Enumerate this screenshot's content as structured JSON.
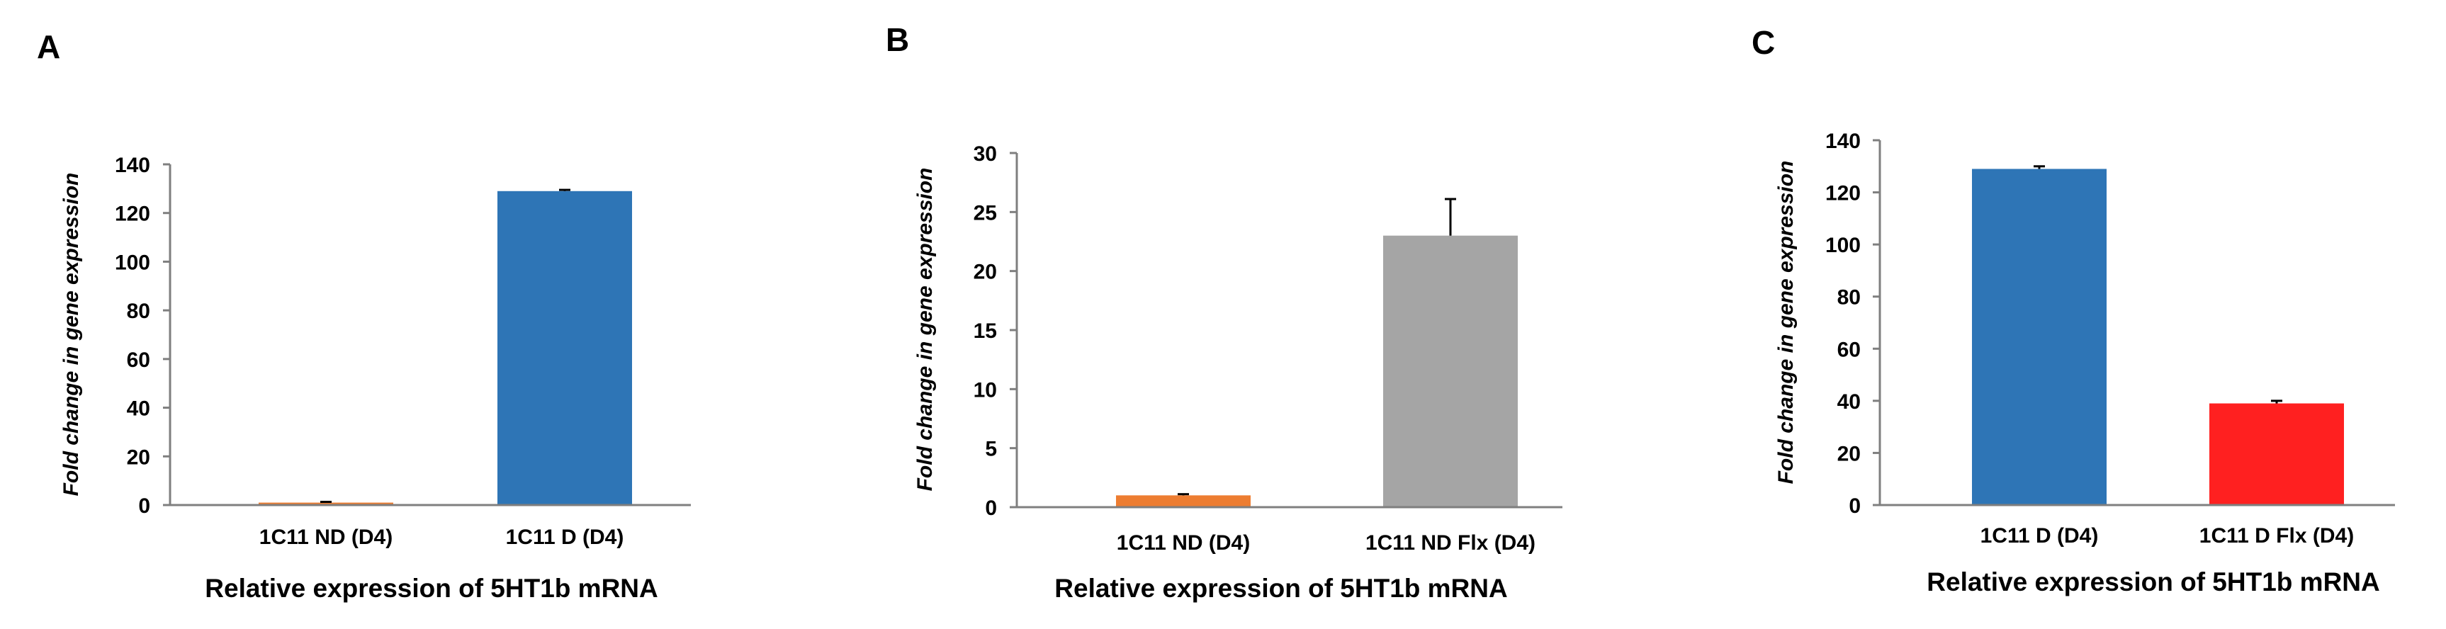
{
  "chart_data": [
    {
      "panel": "A",
      "type": "bar",
      "categories": [
        "1C11 ND (D4)",
        "1C11 D (D4)"
      ],
      "values": [
        1,
        129
      ],
      "errors": [
        0.3,
        0.5
      ],
      "colors": [
        "#ed7d31",
        "#2e75b6"
      ],
      "ylim": [
        0,
        140
      ],
      "yticks": [
        0,
        20,
        40,
        60,
        80,
        100,
        120,
        140
      ],
      "xlabel": "Relative expression of 5HT1b mRNA",
      "ylabel": "Fold change in gene expression"
    },
    {
      "panel": "B",
      "type": "bar",
      "categories": [
        "1C11 ND (D4)",
        "1C11 ND Flx (D4)"
      ],
      "values": [
        1,
        23
      ],
      "errors": [
        0.1,
        3.1
      ],
      "colors": [
        "#ed7d31",
        "#a5a5a5"
      ],
      "ylim": [
        0,
        30
      ],
      "yticks": [
        0,
        5,
        10,
        15,
        20,
        25,
        30
      ],
      "xlabel": "Relative expression of 5HT1b mRNA",
      "ylabel": "Fold change in gene expression"
    },
    {
      "panel": "C",
      "type": "bar",
      "categories": [
        "1C11 D  (D4)",
        "1C11 D Flx (D4)"
      ],
      "values": [
        129,
        39
      ],
      "errors": [
        1,
        1
      ],
      "colors": [
        "#2e75b6",
        "#ff2020"
      ],
      "ylim": [
        0,
        140
      ],
      "yticks": [
        0,
        20,
        40,
        60,
        80,
        100,
        120,
        140
      ],
      "xlabel": "Relative expression of 5HT1b mRNA",
      "ylabel": "Fold change in gene expression"
    }
  ]
}
